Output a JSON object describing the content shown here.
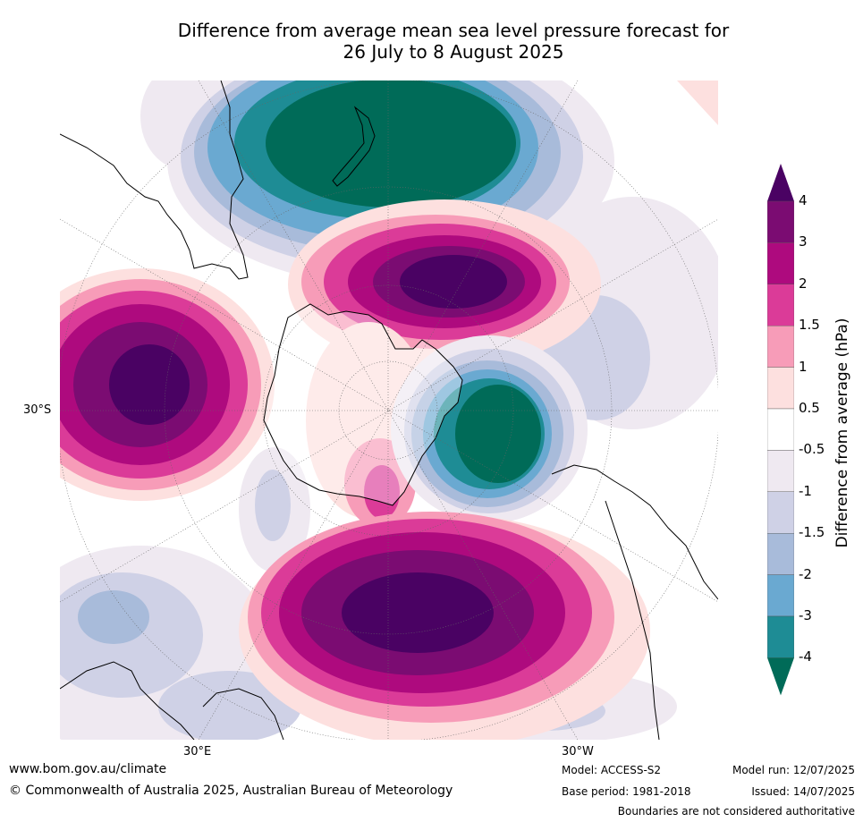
{
  "title": {
    "line1": "Difference from average mean sea level pressure forecast for",
    "line2": "26 July to 8 August 2025"
  },
  "axis_labels": {
    "lat_30s": "30°S",
    "lon_30e": "30°E",
    "lon_30w": "30°W"
  },
  "colorbar": {
    "title": "Difference from average (hPa)",
    "ticks": [
      "4",
      "3",
      "2",
      "1.5",
      "1",
      "0.5",
      "-0.5",
      "-1",
      "-1.5",
      "-2",
      "-3",
      "-4"
    ],
    "colors": [
      "#7b0c72",
      "#ae0a7e",
      "#db3b98",
      "#f79cb8",
      "#fde0df",
      "#ffffff",
      "#efe9f1",
      "#cfd1e6",
      "#a8bbda",
      "#6aa9d1",
      "#1e8c95"
    ],
    "top_color": "#4a0263",
    "bottom_color": "#006b58"
  },
  "footer": {
    "url": "www.bom.gov.au/climate",
    "copyright": "© Commonwealth of Australia 2025, Australian Bureau of Meteorology",
    "model": "Model: ACCESS-S2",
    "base_period": "Base period: 1981-2018",
    "model_run": "Model run: 12/07/2025",
    "issued": "Issued: 14/07/2025",
    "disclaimer": "Boundaries are not considered authoritative"
  }
}
